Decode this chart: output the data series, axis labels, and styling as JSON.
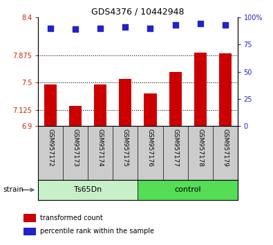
{
  "title": "GDS4376 / 10442948",
  "samples": [
    "GSM957172",
    "GSM957173",
    "GSM957174",
    "GSM957175",
    "GSM957176",
    "GSM957177",
    "GSM957178",
    "GSM957179"
  ],
  "bar_values": [
    7.47,
    7.18,
    7.47,
    7.55,
    7.35,
    7.65,
    7.91,
    7.9
  ],
  "dot_values": [
    90,
    89,
    90,
    91,
    90,
    93,
    94,
    93
  ],
  "groups": [
    {
      "label": "Ts65Dn",
      "start": 0,
      "end": 4,
      "color": "#c8f0c8"
    },
    {
      "label": "control",
      "start": 4,
      "end": 8,
      "color": "#55dd55"
    }
  ],
  "ylim_left": [
    6.9,
    8.4
  ],
  "ylim_right": [
    0,
    100
  ],
  "yticks_left": [
    6.9,
    7.125,
    7.5,
    7.875,
    8.4
  ],
  "ytick_labels_left": [
    "6.9",
    "7.125",
    "7.5",
    "7.875",
    "8.4"
  ],
  "yticks_right": [
    0,
    25,
    50,
    75,
    100
  ],
  "ytick_labels_right": [
    "0",
    "25",
    "50",
    "75",
    "100%"
  ],
  "hlines": [
    7.125,
    7.5,
    7.875
  ],
  "bar_color": "#cc0000",
  "dot_color": "#2222cc",
  "bar_width": 0.5,
  "dot_size": 28,
  "left_tick_color": "#cc2200",
  "right_tick_color": "#2222cc",
  "bg_xtick": "#cccccc",
  "legend_bar_label": "transformed count",
  "legend_dot_label": "percentile rank within the sample",
  "strain_label": "strain",
  "fig_width": 3.95,
  "fig_height": 3.54
}
